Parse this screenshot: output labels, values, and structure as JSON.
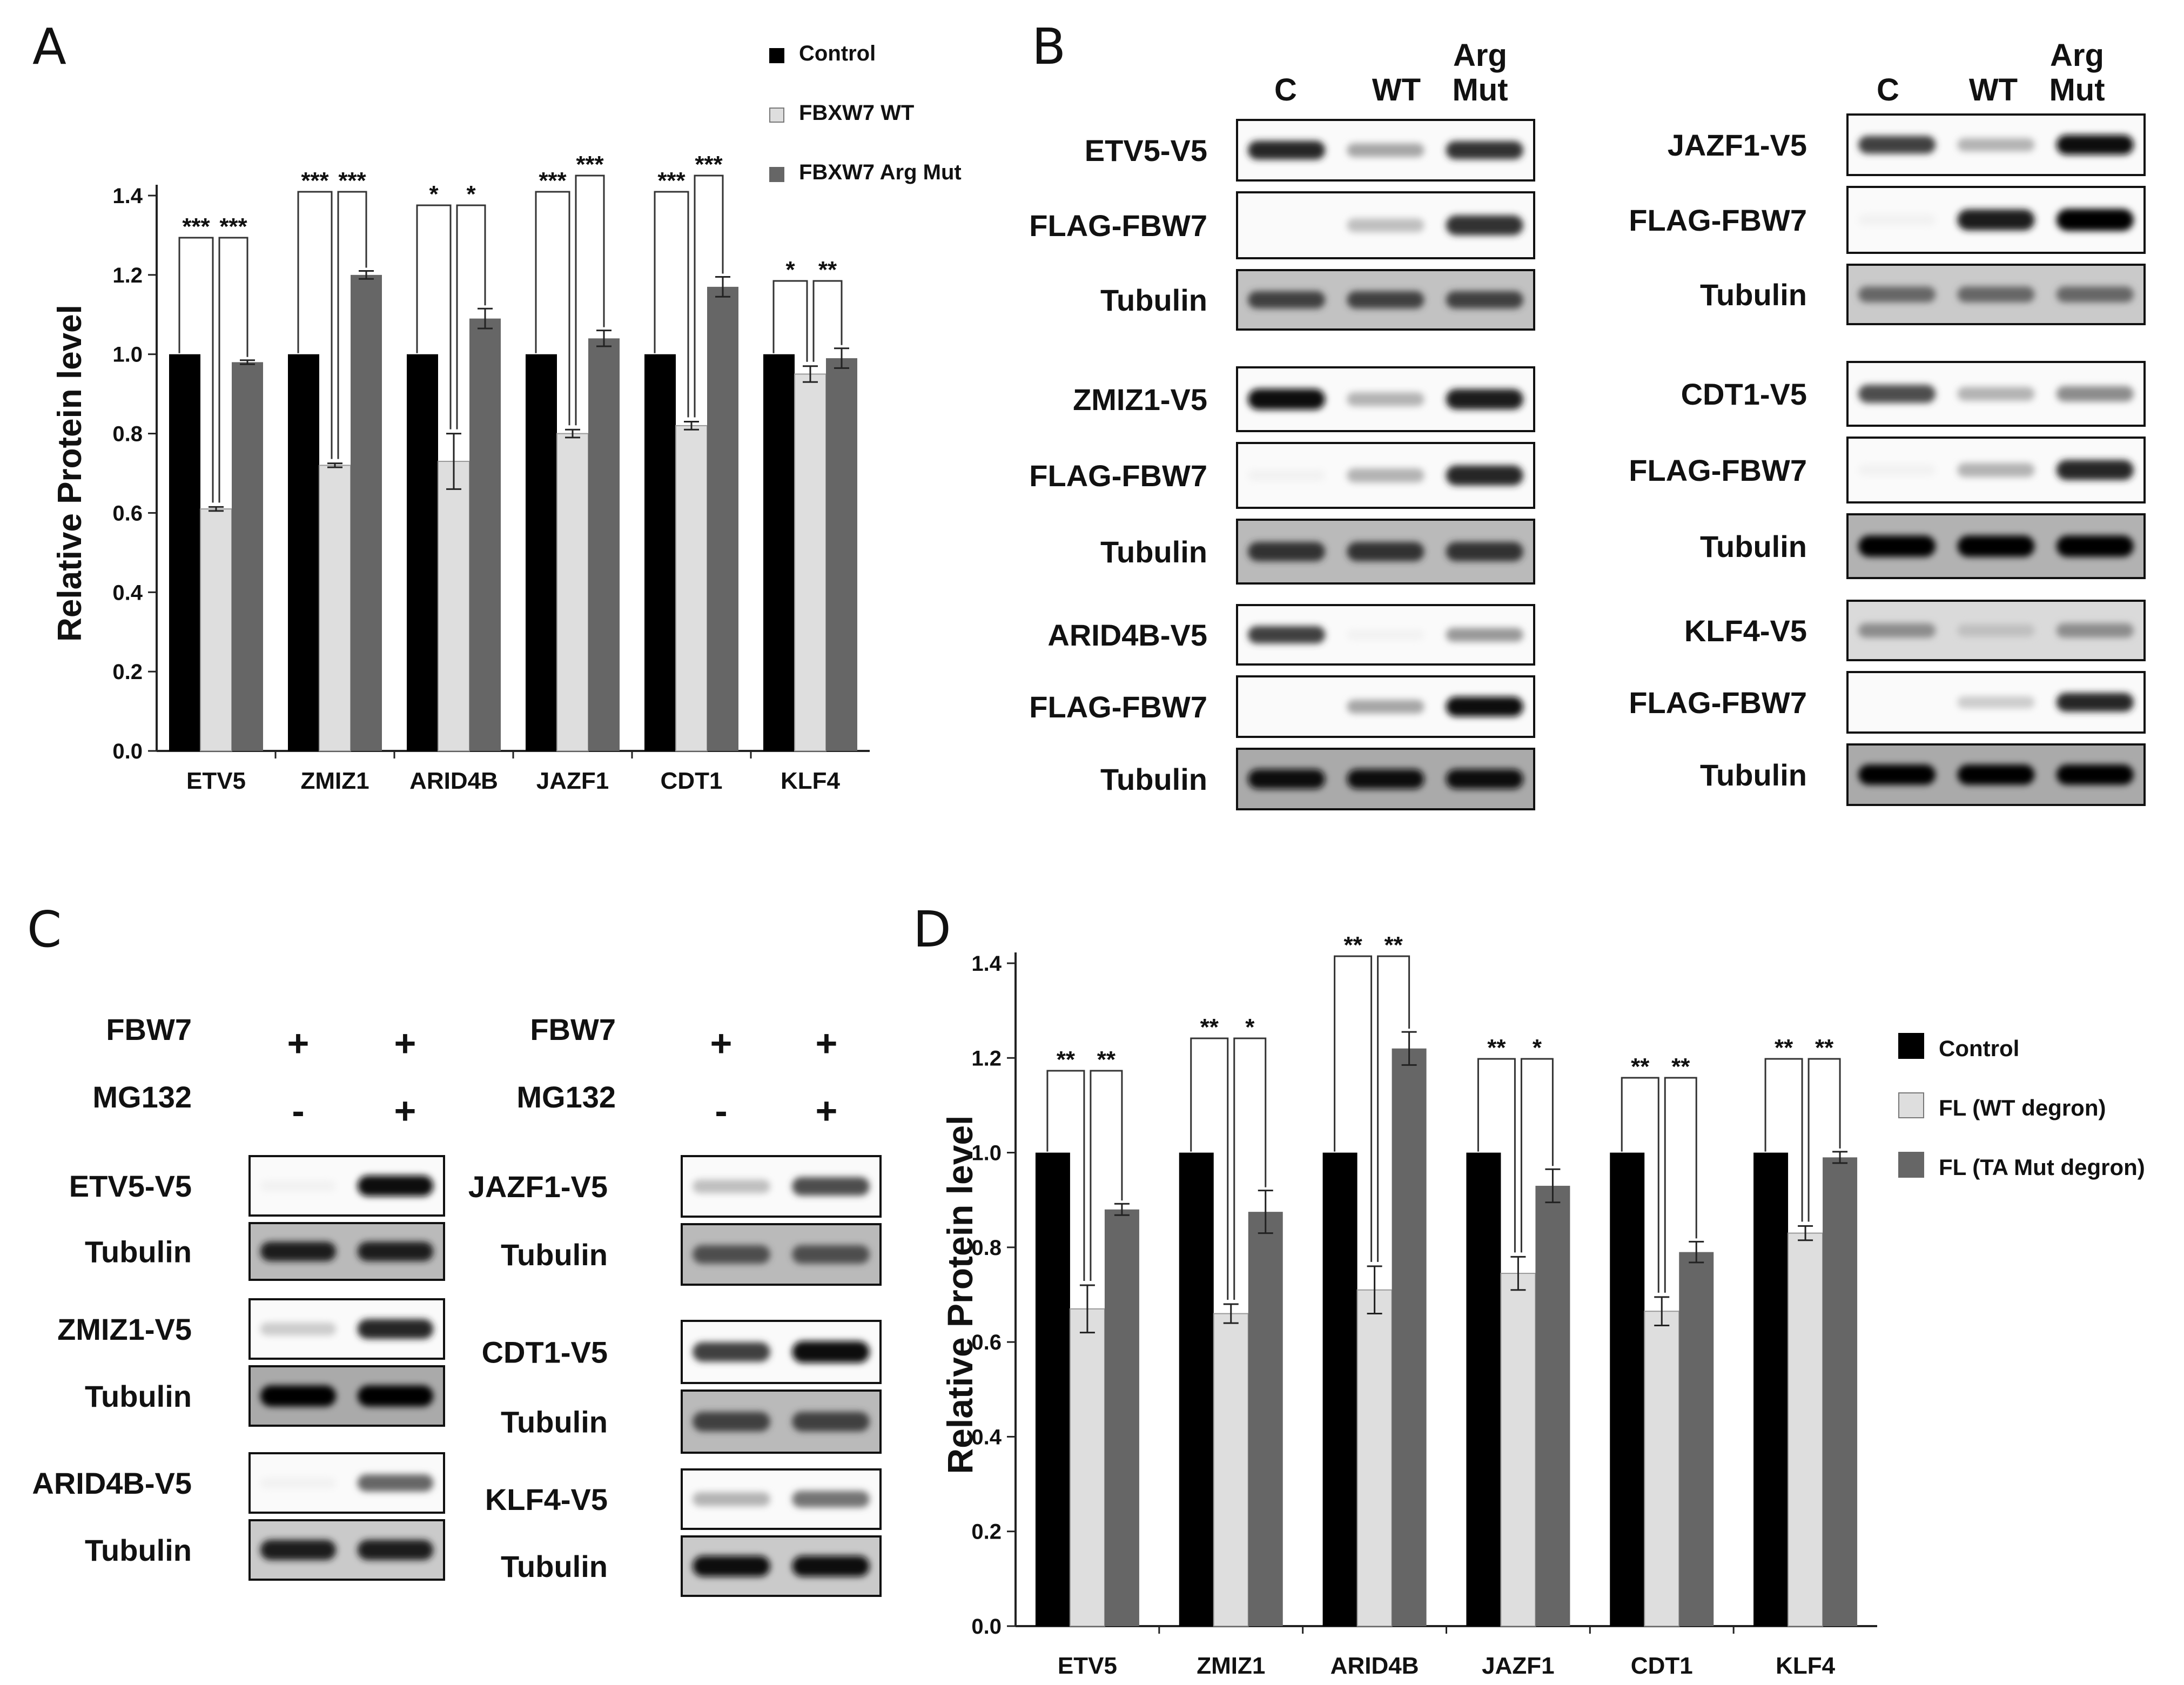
{
  "panels": [
    "A",
    "B",
    "C",
    "D"
  ],
  "chart_data": [
    {
      "panel": "A",
      "type": "bar",
      "ylabel": "Relative Protein level",
      "ylim": [
        0.0,
        1.4
      ],
      "yticks": [
        "0.0",
        "0.2",
        "0.4",
        "0.6",
        "0.8",
        "1.0",
        "1.2",
        "1.4"
      ],
      "categories": [
        "ETV5",
        "ZMIZ1",
        "ARID4B",
        "JAZF1",
        "CDT1",
        "KLF4"
      ],
      "series": [
        {
          "name": "Control",
          "values": [
            1.0,
            1.0,
            1.0,
            1.0,
            1.0,
            1.0
          ],
          "errors": [
            0,
            0,
            0,
            0,
            0,
            0
          ],
          "color": "#000000"
        },
        {
          "name": "FBXW7 WT",
          "values": [
            0.61,
            0.72,
            0.73,
            0.8,
            0.82,
            0.95
          ],
          "errors": [
            0.005,
            0.005,
            0.07,
            0.01,
            0.01,
            0.02
          ],
          "color": "#dedede"
        },
        {
          "name": "FBXW7 Arg Mut",
          "values": [
            0.98,
            1.2,
            1.09,
            1.04,
            1.17,
            0.99
          ],
          "errors": [
            0.005,
            0.01,
            0.025,
            0.02,
            0.025,
            0.025
          ],
          "color": "#666666"
        }
      ],
      "significance": [
        [
          "***",
          "***"
        ],
        [
          "***",
          "***"
        ],
        [
          "*",
          "*"
        ],
        [
          "***",
          "***"
        ],
        [
          "***",
          "***"
        ],
        [
          "*",
          "**"
        ]
      ],
      "legend_position": "top-right"
    },
    {
      "panel": "D",
      "type": "bar",
      "ylabel": "Relative Protein level",
      "ylim": [
        0.0,
        1.4
      ],
      "yticks": [
        "0.0",
        "0.2",
        "0.4",
        "0.6",
        "0.8",
        "1.0",
        "1.2",
        "1.4"
      ],
      "categories": [
        "ETV5",
        "ZMIZ1",
        "ARID4B",
        "JAZF1",
        "CDT1",
        "KLF4"
      ],
      "series": [
        {
          "name": "Control",
          "values": [
            1.0,
            1.0,
            1.0,
            1.0,
            1.0,
            1.0
          ],
          "errors": [
            0,
            0,
            0,
            0,
            0,
            0
          ],
          "color": "#000000"
        },
        {
          "name": "FL (WT degron)",
          "values": [
            0.67,
            0.66,
            0.71,
            0.745,
            0.665,
            0.83
          ],
          "errors": [
            0.05,
            0.02,
            0.05,
            0.035,
            0.03,
            0.015
          ],
          "color": "#dedede"
        },
        {
          "name": "FL (TA Mut degron)",
          "values": [
            0.88,
            0.875,
            1.22,
            0.93,
            0.79,
            0.99
          ],
          "errors": [
            0.012,
            0.045,
            0.035,
            0.035,
            0.022,
            0.012
          ],
          "color": "#666666"
        }
      ],
      "significance": [
        [
          "**",
          "**"
        ],
        [
          "**",
          "*"
        ],
        [
          "**",
          "**"
        ],
        [
          "**",
          "*"
        ],
        [
          "**",
          "**"
        ],
        [
          "**",
          "**"
        ]
      ],
      "legend_position": "right"
    }
  ],
  "blot_b": {
    "lane_labels": [
      "C",
      "WT",
      [
        "Arg",
        "Mut"
      ]
    ],
    "groups": [
      {
        "rows": [
          {
            "label": "ETV5-V5",
            "bands": [
              0.85,
              0.35,
              0.8
            ]
          },
          {
            "label": "FLAG-FBW7",
            "bands": [
              0.0,
              0.25,
              0.8
            ]
          },
          {
            "label": "Tubulin",
            "bands": [
              0.75,
              0.75,
              0.75
            ],
            "bg": 0.35
          }
        ]
      },
      {
        "rows": [
          {
            "label": "ZMIZ1-V5",
            "bands": [
              0.95,
              0.3,
              0.9
            ]
          },
          {
            "label": "FLAG-FBW7",
            "bands": [
              0.05,
              0.3,
              0.85
            ]
          },
          {
            "label": "Tubulin",
            "bands": [
              0.8,
              0.8,
              0.8
            ],
            "bg": 0.4
          }
        ]
      },
      {
        "rows": [
          {
            "label": "ARID4B-V5",
            "bands": [
              0.75,
              0.05,
              0.4
            ]
          },
          {
            "label": "FLAG-FBW7",
            "bands": [
              0.0,
              0.35,
              0.95
            ]
          },
          {
            "label": "Tubulin",
            "bands": [
              0.95,
              0.95,
              0.95
            ],
            "bg": 0.5
          }
        ]
      },
      {
        "rows": [
          {
            "label": "JAZF1-V5",
            "bands": [
              0.75,
              0.3,
              0.95
            ]
          },
          {
            "label": "FLAG-FBW7",
            "bands": [
              0.05,
              0.9,
              1.0
            ]
          },
          {
            "label": "Tubulin",
            "bands": [
              0.6,
              0.6,
              0.6
            ],
            "bg": 0.3
          }
        ]
      },
      {
        "rows": [
          {
            "label": "CDT1-V5",
            "bands": [
              0.7,
              0.3,
              0.45
            ]
          },
          {
            "label": "FLAG-FBW7",
            "bands": [
              0.05,
              0.3,
              0.85
            ]
          },
          {
            "label": "Tubulin",
            "bands": [
              1.0,
              1.0,
              1.0
            ],
            "bg": 0.45
          }
        ]
      },
      {
        "rows": [
          {
            "label": "KLF4-V5",
            "bands": [
              0.45,
              0.25,
              0.45
            ],
            "bg": 0.2
          },
          {
            "label": "FLAG-FBW7",
            "bands": [
              0.0,
              0.2,
              0.85
            ]
          },
          {
            "label": "Tubulin",
            "bands": [
              1.0,
              1.0,
              1.0
            ],
            "bg": 0.5
          }
        ]
      }
    ]
  },
  "blot_c": {
    "conditions": [
      {
        "label": "FBW7",
        "values": [
          "+",
          "+"
        ]
      },
      {
        "label": "MG132",
        "values": [
          "-",
          "+"
        ]
      }
    ],
    "groups": [
      {
        "rows": [
          {
            "label": "ETV5-V5",
            "bands": [
              0.05,
              0.95
            ]
          },
          {
            "label": "Tubulin",
            "bands": [
              0.9,
              0.9
            ],
            "bg": 0.4
          }
        ]
      },
      {
        "rows": [
          {
            "label": "ZMIZ1-V5",
            "bands": [
              0.2,
              0.85
            ]
          },
          {
            "label": "Tubulin",
            "bands": [
              1.0,
              1.0
            ],
            "bg": 0.5
          }
        ]
      },
      {
        "rows": [
          {
            "label": "ARID4B-V5",
            "bands": [
              0.05,
              0.6
            ]
          },
          {
            "label": "Tubulin",
            "bands": [
              0.9,
              0.9
            ],
            "bg": 0.3
          }
        ]
      },
      {
        "rows": [
          {
            "label": "JAZF1-V5",
            "bands": [
              0.25,
              0.7
            ]
          },
          {
            "label": "Tubulin",
            "bands": [
              0.7,
              0.7
            ],
            "bg": 0.4
          }
        ]
      },
      {
        "rows": [
          {
            "label": "CDT1-V5",
            "bands": [
              0.75,
              0.95
            ]
          },
          {
            "label": "Tubulin",
            "bands": [
              0.75,
              0.75
            ],
            "bg": 0.4
          }
        ]
      },
      {
        "rows": [
          {
            "label": "KLF4-V5",
            "bands": [
              0.3,
              0.55
            ]
          },
          {
            "label": "Tubulin",
            "bands": [
              0.95,
              0.95
            ],
            "bg": 0.3
          }
        ]
      }
    ]
  }
}
